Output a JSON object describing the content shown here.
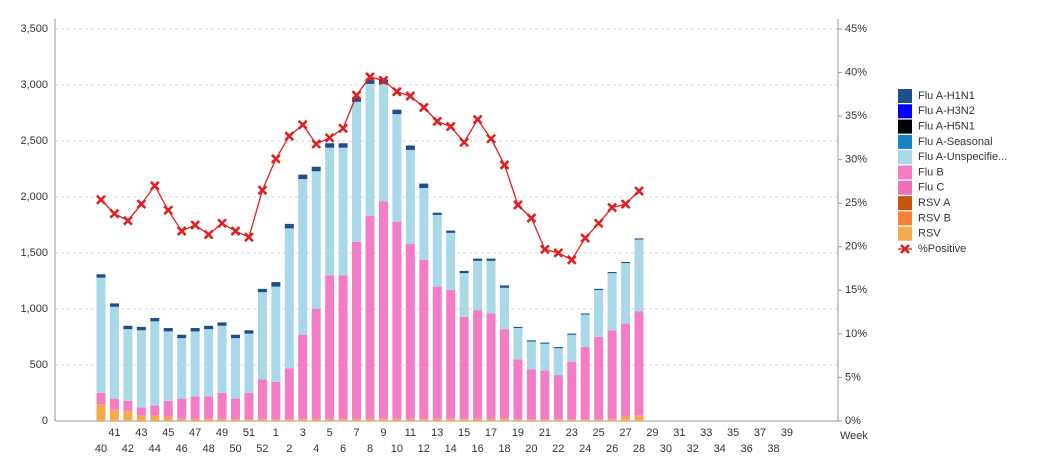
{
  "chart_data": {
    "type": "bar",
    "x_label": "Week",
    "categories": [
      "40",
      "41",
      "42",
      "43",
      "44",
      "45",
      "46",
      "47",
      "48",
      "49",
      "50",
      "51",
      "52",
      "1",
      "2",
      "3",
      "4",
      "5",
      "6",
      "7",
      "8",
      "9",
      "10",
      "11",
      "12",
      "13",
      "14",
      "15",
      "16",
      "17",
      "18",
      "19",
      "20",
      "21",
      "22",
      "23",
      "24",
      "25",
      "26",
      "27",
      "28",
      "29",
      "30",
      "31",
      "32",
      "33",
      "34",
      "35",
      "36",
      "37",
      "38",
      "39"
    ],
    "ylim": [
      0,
      3500
    ],
    "yticks": [
      0,
      500,
      {
        "value": 1000,
        "label": "1,000"
      },
      {
        "value": 1500,
        "label": "1,500"
      },
      {
        "value": 2000,
        "label": "2,000"
      },
      {
        "value": 2500,
        "label": "2,500"
      },
      {
        "value": 3000,
        "label": "3,000"
      },
      {
        "value": 3500,
        "label": "3,500"
      }
    ],
    "y2lim": [
      0,
      45
    ],
    "y2ticks": [
      {
        "value": 0,
        "label": "0%"
      },
      {
        "value": 5,
        "label": "5%"
      },
      {
        "value": 10,
        "label": "10%"
      },
      {
        "value": 15,
        "label": "15%"
      },
      {
        "value": 20,
        "label": "20%"
      },
      {
        "value": 25,
        "label": "25%"
      },
      {
        "value": 30,
        "label": "30%"
      },
      {
        "value": 35,
        "label": "35%"
      },
      {
        "value": 40,
        "label": "40%"
      },
      {
        "value": 45,
        "label": "45%"
      }
    ],
    "grid": true,
    "stacked": true,
    "series": [
      {
        "name": "Flu A-H1N1",
        "color": "#1f4e8c",
        "values": [
          30,
          30,
          30,
          30,
          30,
          30,
          30,
          30,
          30,
          30,
          30,
          30,
          30,
          40,
          40,
          40,
          40,
          40,
          40,
          40,
          40,
          40,
          40,
          40,
          40,
          20,
          20,
          20,
          20,
          20,
          20,
          10,
          10,
          10,
          10,
          10,
          10,
          10,
          10,
          10,
          10,
          null,
          null,
          null,
          null,
          null,
          null,
          null,
          null,
          null,
          null,
          null
        ]
      },
      {
        "name": "Flu A-H3N2",
        "color": "#0000ff",
        "values": [
          0,
          0,
          0,
          0,
          0,
          0,
          0,
          0,
          0,
          0,
          0,
          0,
          0,
          0,
          0,
          0,
          0,
          0,
          0,
          0,
          0,
          0,
          0,
          0,
          0,
          0,
          0,
          0,
          0,
          0,
          0,
          0,
          0,
          0,
          0,
          0,
          0,
          0,
          0,
          0,
          0,
          null,
          null,
          null,
          null,
          null,
          null,
          null,
          null,
          null,
          null,
          null
        ]
      },
      {
        "name": "Flu A-H5N1",
        "color": "#000000",
        "values": [
          0,
          0,
          0,
          0,
          0,
          0,
          0,
          0,
          0,
          0,
          0,
          0,
          0,
          0,
          0,
          0,
          0,
          0,
          0,
          0,
          0,
          0,
          0,
          0,
          0,
          0,
          0,
          0,
          0,
          0,
          0,
          0,
          0,
          0,
          0,
          0,
          0,
          0,
          0,
          0,
          0,
          null,
          null,
          null,
          null,
          null,
          null,
          null,
          null,
          null,
          null,
          null
        ]
      },
      {
        "name": "Flu A-Seasonal",
        "color": "#1a80c4",
        "values": [
          0,
          0,
          0,
          0,
          0,
          0,
          0,
          0,
          0,
          0,
          0,
          0,
          0,
          0,
          0,
          0,
          0,
          0,
          0,
          0,
          0,
          0,
          0,
          0,
          0,
          0,
          0,
          0,
          0,
          0,
          0,
          0,
          0,
          0,
          0,
          0,
          0,
          0,
          0,
          0,
          0,
          null,
          null,
          null,
          null,
          null,
          null,
          null,
          null,
          null,
          null,
          null
        ]
      },
      {
        "name": "Flu A-Unspecifie...",
        "color": "#a9d8e6",
        "values": [
          1030,
          820,
          640,
          690,
          750,
          620,
          540,
          580,
          600,
          600,
          540,
          530,
          780,
          850,
          1250,
          1390,
          1230,
          1140,
          1140,
          1250,
          1180,
          1050,
          960,
          840,
          640,
          640,
          510,
          390,
          440,
          470,
          370,
          280,
          250,
          240,
          240,
          240,
          290,
          420,
          510,
          540,
          640,
          null,
          null,
          null,
          null,
          null,
          null,
          null,
          null,
          null,
          null,
          null
        ]
      },
      {
        "name": "Flu B",
        "color": "#f47cc4",
        "values": [
          100,
          100,
          90,
          70,
          90,
          140,
          180,
          200,
          200,
          230,
          185,
          235,
          350,
          335,
          455,
          750,
          980,
          1280,
          1280,
          1580,
          1810,
          1940,
          1760,
          1560,
          1420,
          1180,
          1150,
          910,
          970,
          940,
          800,
          535,
          445,
          435,
          395,
          515,
          645,
          735,
          790,
          830,
          930,
          null,
          null,
          null,
          null,
          null,
          null,
          null,
          null,
          null,
          null,
          null
        ]
      },
      {
        "name": "Flu C",
        "color": "#ee6fb5",
        "values": [
          0,
          0,
          0,
          0,
          0,
          0,
          0,
          0,
          0,
          0,
          0,
          0,
          0,
          0,
          0,
          0,
          0,
          0,
          0,
          0,
          0,
          0,
          0,
          0,
          0,
          0,
          0,
          0,
          0,
          0,
          0,
          0,
          0,
          0,
          0,
          0,
          0,
          0,
          0,
          0,
          0,
          null,
          null,
          null,
          null,
          null,
          null,
          null,
          null,
          null,
          null,
          null
        ]
      },
      {
        "name": "RSV A",
        "color": "#c8560c",
        "values": [
          0,
          0,
          0,
          0,
          0,
          0,
          0,
          0,
          0,
          0,
          0,
          0,
          0,
          0,
          0,
          0,
          0,
          0,
          0,
          0,
          0,
          0,
          0,
          0,
          0,
          0,
          0,
          0,
          0,
          0,
          0,
          0,
          0,
          0,
          0,
          0,
          0,
          0,
          0,
          0,
          0,
          null,
          null,
          null,
          null,
          null,
          null,
          null,
          null,
          null,
          null,
          null
        ]
      },
      {
        "name": "RSV B",
        "color": "#f5823a",
        "values": [
          0,
          0,
          0,
          0,
          0,
          0,
          0,
          0,
          0,
          0,
          0,
          0,
          0,
          0,
          0,
          0,
          0,
          0,
          0,
          0,
          0,
          0,
          0,
          0,
          0,
          0,
          0,
          0,
          0,
          0,
          0,
          0,
          0,
          0,
          0,
          0,
          0,
          0,
          0,
          0,
          0,
          null,
          null,
          null,
          null,
          null,
          null,
          null,
          null,
          null,
          null,
          null
        ]
      },
      {
        "name": "RSV",
        "color": "#f7a94e",
        "values": [
          150,
          100,
          90,
          50,
          50,
          40,
          20,
          20,
          20,
          20,
          15,
          15,
          20,
          15,
          15,
          20,
          20,
          20,
          20,
          20,
          20,
          20,
          20,
          20,
          20,
          20,
          20,
          20,
          20,
          20,
          20,
          15,
          15,
          15,
          15,
          15,
          15,
          15,
          20,
          40,
          50,
          null,
          null,
          null,
          null,
          null,
          null,
          null,
          null,
          null,
          null,
          null
        ]
      },
      {
        "name": "%Positive",
        "color": "#e02020",
        "axis": "y2",
        "type": "line",
        "values": [
          25.4,
          23.8,
          23.0,
          24.9,
          27.0,
          24.2,
          21.8,
          22.5,
          21.4,
          22.7,
          21.8,
          21.1,
          26.5,
          30.1,
          32.7,
          34.0,
          31.8,
          32.5,
          33.6,
          37.4,
          39.5,
          39.1,
          37.8,
          37.3,
          36.0,
          34.4,
          33.8,
          32.0,
          34.6,
          32.4,
          29.4,
          24.8,
          23.3,
          19.7,
          19.3,
          18.5,
          21.0,
          22.7,
          24.5,
          24.9,
          26.4,
          null,
          null,
          null,
          null,
          null,
          null,
          null,
          null,
          null,
          null,
          null
        ]
      }
    ]
  }
}
